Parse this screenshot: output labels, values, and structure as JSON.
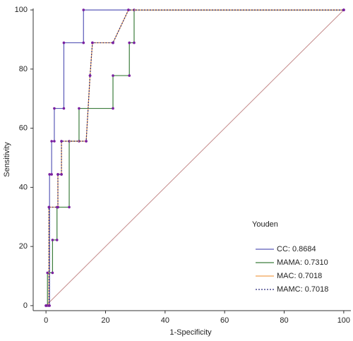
{
  "chart_data": {
    "type": "line",
    "x_label": "1-Specificity",
    "y_label": "Sensitivity",
    "xlim": [
      -4.3,
      102.4
    ],
    "ylim": [
      -1.7,
      100.5
    ],
    "xticks": [
      0,
      20,
      40,
      60,
      80,
      100
    ],
    "yticks": [
      0,
      20,
      40,
      60,
      80,
      100
    ],
    "legend_title": "Youden",
    "legend_position": "lower right",
    "reference_line": {
      "x": [
        0,
        100
      ],
      "values": [
        0,
        100
      ],
      "color": "#c48a8a"
    },
    "series": [
      {
        "name": "CC: 0.8684",
        "color": "#5a5ab8",
        "style": "solid",
        "x": [
          0,
          1.2,
          1.2,
          1.9,
          1.9,
          2.8,
          2.8,
          6,
          6,
          12.6,
          12.6,
          100
        ],
        "values": [
          0,
          0,
          44.4,
          44.4,
          55.6,
          55.6,
          66.7,
          66.7,
          88.9,
          88.9,
          100,
          100
        ]
      },
      {
        "name": "MAMA: 0.7310",
        "color": "#3c7d3c",
        "style": "solid",
        "x": [
          0,
          0.5,
          0.5,
          2.2,
          2.2,
          3.7,
          3.7,
          7.8,
          7.8,
          11.1,
          11.1,
          22.5,
          22.5,
          28,
          28,
          29.6,
          29.6,
          100
        ],
        "values": [
          0,
          0,
          11.1,
          11.1,
          22.2,
          22.2,
          33.3,
          33.3,
          55.6,
          55.6,
          66.7,
          66.7,
          77.8,
          77.8,
          88.9,
          88.9,
          100,
          100
        ]
      },
      {
        "name": "MAC: 0.7018",
        "color": "#f0a050",
        "style": "solid",
        "x": [
          0,
          1,
          1,
          4,
          4,
          5.2,
          5.2,
          13.5,
          14.8,
          15.6,
          22.5,
          27.7,
          100
        ],
        "values": [
          0,
          0,
          33.3,
          33.3,
          44.4,
          44.4,
          55.6,
          55.6,
          77.8,
          88.9,
          88.9,
          100,
          100
        ]
      },
      {
        "name": "MAMC: 0.7018",
        "color": "#2a2a7a",
        "style": "dashed",
        "x": [
          0,
          1,
          1,
          4,
          4,
          5.2,
          5.2,
          13.5,
          14.8,
          15.6,
          22.5,
          27.7,
          100
        ],
        "values": [
          0,
          0,
          33.3,
          33.3,
          44.4,
          44.4,
          55.6,
          55.6,
          77.8,
          88.9,
          88.9,
          100,
          100
        ]
      }
    ],
    "marker_color": "#7a1fa0"
  }
}
